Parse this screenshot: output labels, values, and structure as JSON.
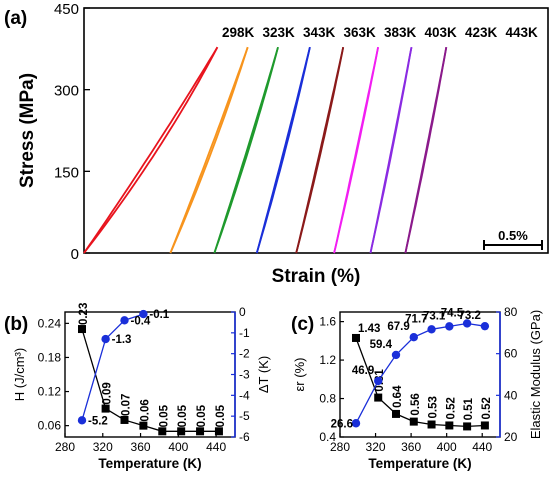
{
  "chart_data": [
    {
      "panel": "(a)",
      "type": "line",
      "xlabel": "Strain (%)",
      "ylabel": "Stress (MPa)",
      "ylim": [
        0,
        450
      ],
      "y_ticks": [
        "0",
        "150",
        "300",
        "450"
      ],
      "scale_bar_label": "0.5%",
      "series": [
        {
          "name": "298K",
          "color": "#e8141e",
          "x_offset": 0.0,
          "strain_max": 0.88,
          "peak_stress": 378,
          "loop": 0.17
        },
        {
          "name": "323K",
          "color": "#f7941d",
          "x_offset": 0.57,
          "strain_max": 0.51,
          "peak_stress": 378,
          "loop": 0.08
        },
        {
          "name": "343K",
          "color": "#1f9a2d",
          "x_offset": 0.86,
          "strain_max": 0.42,
          "peak_stress": 378,
          "loop": 0.06
        },
        {
          "name": "363K",
          "color": "#1a2fd9",
          "x_offset": 1.14,
          "strain_max": 0.35,
          "peak_stress": 378,
          "loop": 0.05
        },
        {
          "name": "383K",
          "color": "#8b1a1a",
          "x_offset": 1.4,
          "strain_max": 0.31,
          "peak_stress": 378,
          "loop": 0.04
        },
        {
          "name": "403K",
          "color": "#f21ef2",
          "x_offset": 1.65,
          "strain_max": 0.29,
          "peak_stress": 378,
          "loop": 0.03
        },
        {
          "name": "423K",
          "color": "#8a2be2",
          "x_offset": 1.89,
          "strain_max": 0.27,
          "peak_stress": 378,
          "loop": 0.03
        },
        {
          "name": "443K",
          "color": "#8b1a8b",
          "x_offset": 2.12,
          "strain_max": 0.27,
          "peak_stress": 378,
          "loop": 0.03
        }
      ]
    },
    {
      "panel": "(b)",
      "type": "line",
      "xlabel": "Temperature (K)",
      "ylabel_left": "H (J/cm³)",
      "ylabel_right": "ΔT (K)",
      "xlim": [
        280,
        460
      ],
      "x_ticks": [
        "280",
        "320",
        "360",
        "400",
        "440"
      ],
      "y_left_lim": [
        0.04,
        0.26
      ],
      "y_left_ticks": [
        "0.06",
        "0.12",
        "0.18",
        "0.24"
      ],
      "y_right_lim": [
        -6,
        0
      ],
      "y_right_ticks": [
        "0",
        "-1",
        "-2",
        "-3",
        "-4",
        "-5",
        "-6"
      ],
      "x": [
        298,
        323,
        343,
        363,
        383,
        403,
        423,
        443
      ],
      "series": [
        {
          "axis": "left",
          "color": "#000000",
          "marker": "square",
          "values": [
            0.23,
            0.09,
            0.07,
            0.06,
            0.05,
            0.05,
            0.05,
            0.05
          ],
          "labels": [
            "0.23",
            "0.09",
            "0.07",
            "0.06",
            "0.05",
            "0.05",
            "0.05",
            "0.05"
          ]
        },
        {
          "axis": "right",
          "color": "#1a2fd9",
          "marker": "circle",
          "x": [
            298,
            323,
            343,
            363
          ],
          "values": [
            -5.2,
            -1.3,
            -0.4,
            -0.1
          ],
          "labels": [
            "-5.2",
            "-1.3",
            "-0.4",
            "-0.1"
          ]
        }
      ]
    },
    {
      "panel": "(c)",
      "type": "line",
      "xlabel": "Temperature (K)",
      "ylabel_left": "εr (%)",
      "ylabel_right": "Elastic Modulus (GPa)",
      "xlim": [
        280,
        460
      ],
      "x_ticks": [
        "280",
        "320",
        "360",
        "400",
        "440"
      ],
      "y_left_lim": [
        0.4,
        1.7
      ],
      "y_left_ticks": [
        "0.4",
        "0.8",
        "1.2",
        "1.6"
      ],
      "y_right_lim": [
        20,
        80
      ],
      "y_right_ticks": [
        "20",
        "40",
        "60",
        "80"
      ],
      "x": [
        298,
        323,
        343,
        363,
        383,
        403,
        423,
        443
      ],
      "series": [
        {
          "axis": "left",
          "color": "#000000",
          "marker": "square",
          "values": [
            1.43,
            0.81,
            0.64,
            0.56,
            0.53,
            0.52,
            0.51,
            0.52
          ],
          "labels": [
            "1.43",
            "0.81",
            "0.64",
            "0.56",
            "0.53",
            "0.52",
            "0.51",
            "0.52"
          ]
        },
        {
          "axis": "right",
          "color": "#1a2fd9",
          "marker": "circle",
          "values": [
            26.6,
            46.9,
            59.4,
            67.9,
            71.7,
            73.1,
            74.5,
            73.2
          ],
          "labels": [
            "26.6",
            "46.9",
            "59.4",
            "67.9",
            "71.7",
            "73.1",
            "74.5",
            "73.2"
          ]
        }
      ]
    }
  ]
}
